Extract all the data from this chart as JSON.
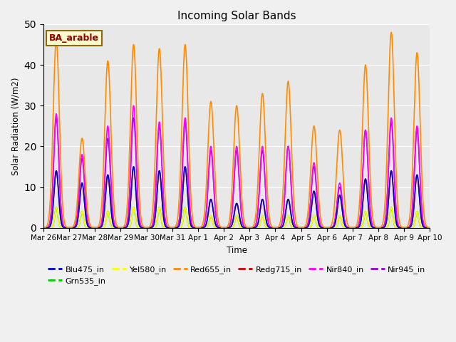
{
  "title": "Incoming Solar Bands",
  "ylabel": "Solar Radiation (W/m2)",
  "xlabel": "Time",
  "annotation": "BA_arable",
  "annotation_color": "#8B0000",
  "annotation_bg": "#FFFACD",
  "annotation_border": "#8B6914",
  "ylim": [
    0,
    50
  ],
  "xtick_labels": [
    "Mar 26",
    "Mar 27",
    "Mar 28",
    "Mar 29",
    "Mar 30",
    "Mar 31",
    "Apr 1",
    "Apr 2",
    "Apr 3",
    "Apr 4",
    "Apr 5",
    "Apr 6",
    "Apr 7",
    "Apr 8",
    "Apr 9",
    "Apr 10"
  ],
  "series": [
    {
      "name": "Blu475_in",
      "color": "#0000CC",
      "lw": 1.2
    },
    {
      "name": "Grn535_in",
      "color": "#00CC00",
      "lw": 1.2
    },
    {
      "name": "Yel580_in",
      "color": "#FFFF00",
      "lw": 1.2
    },
    {
      "name": "Red655_in",
      "color": "#FF8C00",
      "lw": 1.2
    },
    {
      "name": "Redg715_in",
      "color": "#CC0000",
      "lw": 1.2
    },
    {
      "name": "Nir840_in",
      "color": "#FF00FF",
      "lw": 1.2
    },
    {
      "name": "Nir945_in",
      "color": "#9400D3",
      "lw": 1.2
    }
  ],
  "peaks": [
    {
      "day": 0.5,
      "blu": 14,
      "grn": 5,
      "yel": 5,
      "red": 46,
      "redg": 14,
      "nir840": 28,
      "nir945": 27
    },
    {
      "day": 1.5,
      "blu": 11,
      "grn": 4,
      "yel": 4,
      "red": 22,
      "redg": 11,
      "nir840": 18,
      "nir945": 17
    },
    {
      "day": 2.5,
      "blu": 13,
      "grn": 4,
      "yel": 4,
      "red": 41,
      "redg": 13,
      "nir840": 25,
      "nir945": 22
    },
    {
      "day": 3.5,
      "blu": 15,
      "grn": 5,
      "yel": 5,
      "red": 45,
      "redg": 15,
      "nir840": 30,
      "nir945": 27
    },
    {
      "day": 4.5,
      "blu": 14,
      "grn": 5,
      "yel": 5,
      "red": 44,
      "redg": 14,
      "nir840": 26,
      "nir945": 25
    },
    {
      "day": 5.5,
      "blu": 15,
      "grn": 5,
      "yel": 5,
      "red": 45,
      "redg": 15,
      "nir840": 27,
      "nir945": 26
    },
    {
      "day": 6.5,
      "blu": 7,
      "grn": 3,
      "yel": 3,
      "red": 31,
      "redg": 7,
      "nir840": 20,
      "nir945": 19
    },
    {
      "day": 7.5,
      "blu": 6,
      "grn": 3,
      "yel": 3,
      "red": 30,
      "redg": 6,
      "nir840": 20,
      "nir945": 19
    },
    {
      "day": 8.5,
      "blu": 7,
      "grn": 3,
      "yel": 3,
      "red": 33,
      "redg": 7,
      "nir840": 20,
      "nir945": 19
    },
    {
      "day": 9.5,
      "blu": 7,
      "grn": 3,
      "yel": 3,
      "red": 36,
      "redg": 7,
      "nir840": 20,
      "nir945": 20
    },
    {
      "day": 10.5,
      "blu": 9,
      "grn": 3,
      "yel": 3,
      "red": 25,
      "redg": 9,
      "nir840": 16,
      "nir945": 15
    },
    {
      "day": 11.5,
      "blu": 8,
      "grn": 3,
      "yel": 3,
      "red": 24,
      "redg": 8,
      "nir840": 11,
      "nir945": 10
    },
    {
      "day": 12.5,
      "blu": 12,
      "grn": 4,
      "yel": 4,
      "red": 40,
      "redg": 12,
      "nir840": 24,
      "nir945": 24
    },
    {
      "day": 13.5,
      "blu": 14,
      "grn": 5,
      "yel": 5,
      "red": 48,
      "redg": 14,
      "nir840": 27,
      "nir945": 26
    },
    {
      "day": 14.5,
      "blu": 13,
      "grn": 4,
      "yel": 4,
      "red": 43,
      "redg": 13,
      "nir840": 25,
      "nir945": 24
    }
  ],
  "peak_widths": {
    "blu": 0.09,
    "grn": 0.06,
    "yel": 0.06,
    "red": 0.12,
    "redg": 0.09,
    "nir840": 0.1,
    "nir945": 0.1
  }
}
